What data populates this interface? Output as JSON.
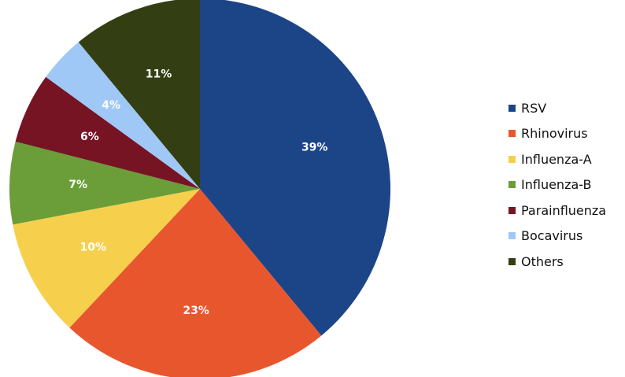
{
  "chart_data": {
    "type": "pie",
    "start_angle": "12 o'clock",
    "direction": "clockwise",
    "legend_position": "right",
    "slices": [
      {
        "label": "RSV",
        "value": 39,
        "display": "39%",
        "color": "#1c4587"
      },
      {
        "label": "Rhinovirus",
        "value": 23,
        "display": "23%",
        "color": "#e8562e"
      },
      {
        "label": "Influenza-A",
        "value": 10,
        "display": "10%",
        "color": "#f6d04d"
      },
      {
        "label": "Influenza-B",
        "value": 7,
        "display": "7%",
        "color": "#6b9e38"
      },
      {
        "label": "Parainfluenza",
        "value": 6,
        "display": "6%",
        "color": "#761424"
      },
      {
        "label": "Bocavirus",
        "value": 4,
        "display": "4%",
        "color": "#9fc8f6"
      },
      {
        "label": "Others",
        "value": 11,
        "display": "11%",
        "color": "#333f12"
      }
    ]
  }
}
